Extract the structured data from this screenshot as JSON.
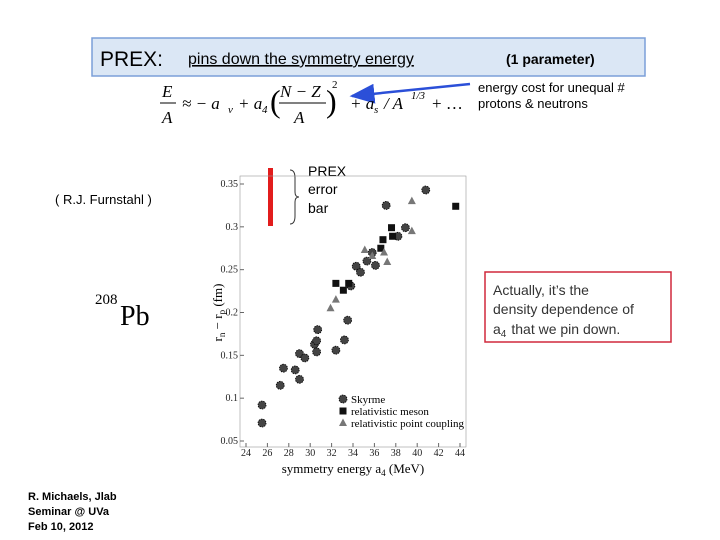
{
  "title": {
    "lead": "PREX:",
    "main": "pins down the symmetry energy",
    "note": "(1 parameter)"
  },
  "formula": {
    "e": "E",
    "a1": "A",
    "approx": "≈ − a",
    "v": "v",
    "plus_a": "+ a",
    "four": "4",
    "num": "N − Z",
    "den": "A",
    "sq": "2",
    "plus_as": "+ a",
    "s": "s",
    "slash": "/ A",
    "third": "1/3",
    "dots": "+ …"
  },
  "callout_arrow": [
    "energy cost for unequal #",
    "protons & neutrons"
  ],
  "credit": "( R.J. Furnstahl )",
  "nucleus": {
    "mass": "208",
    "symbol": "Pb"
  },
  "prex_bar": [
    "PREX",
    "error",
    "bar"
  ],
  "remark": {
    "line1": "Actually, it’s the",
    "line2": "density dependence of",
    "a": "a",
    "sub": "4",
    "rest": "that we pin down."
  },
  "footer": [
    "R. Michaels, Jlab",
    "Seminar @ UVa",
    " Feb 10, 2012"
  ],
  "chart_data": {
    "type": "scatter",
    "x_label": [
      "symmetry energy a",
      "4",
      " (MeV)"
    ],
    "y_label": [
      "r",
      "n",
      " − r",
      "p",
      "  (fm)"
    ],
    "xlim": [
      24,
      44
    ],
    "xticks": [
      24,
      26,
      28,
      30,
      32,
      34,
      36,
      38,
      40,
      42,
      44
    ],
    "ylim": [
      0.05,
      0.35
    ],
    "yticks": [
      0.05,
      0.1,
      0.15,
      0.2,
      0.25,
      0.3,
      0.35
    ],
    "series": [
      {
        "name": "Skyrme",
        "marker": "circle",
        "color": "#444444",
        "x": [
          25.5,
          25.5,
          27.2,
          27.5,
          28.6,
          29.0,
          29.0,
          29.5,
          30.4,
          30.7,
          32.4,
          33.2,
          33.5,
          33.8,
          34.3,
          34.7,
          35.3,
          36.1,
          35.8,
          37.1,
          38.2,
          38.9,
          40.8,
          30.6,
          30.6
        ],
        "values": [
          0.071,
          0.092,
          0.115,
          0.135,
          0.133,
          0.122,
          0.152,
          0.147,
          0.163,
          0.18,
          0.156,
          0.168,
          0.191,
          0.231,
          0.254,
          0.247,
          0.26,
          0.255,
          0.27,
          0.325,
          0.289,
          0.299,
          0.343,
          0.167,
          0.154
        ]
      },
      {
        "name": "relativistic meson",
        "marker": "square",
        "color": "#111111",
        "x": [
          32.4,
          33.1,
          36.8,
          36.6,
          37.7,
          43.6,
          37.6,
          33.6
        ],
        "values": [
          0.234,
          0.226,
          0.285,
          0.275,
          0.289,
          0.324,
          0.299,
          0.234
        ]
      },
      {
        "name": "relativistic point coupling",
        "marker": "triangle",
        "color": "#777777",
        "x": [
          35.1,
          35.8,
          37.2,
          39.5,
          39.5,
          36.9,
          31.9,
          32.4
        ],
        "values": [
          0.273,
          0.266,
          0.259,
          0.295,
          0.33,
          0.27,
          0.205,
          0.215
        ]
      }
    ]
  }
}
